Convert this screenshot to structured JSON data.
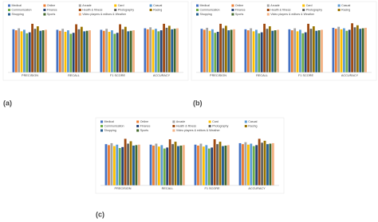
{
  "chart_data": [
    {
      "type": "bar",
      "label": "(a)",
      "categories": [
        "PRECISION",
        "RECALL",
        "F1 SCORE",
        "ACCURACY"
      ],
      "series": [
        {
          "name": "Medical",
          "color": "#4472c4",
          "values": [
            0.86,
            0.85,
            0.85,
            0.88
          ]
        },
        {
          "name": "Online",
          "color": "#ed7d31",
          "values": [
            0.84,
            0.83,
            0.83,
            0.86
          ]
        },
        {
          "name": "Arcade",
          "color": "#a5a5a5",
          "values": [
            0.88,
            0.87,
            0.87,
            0.9
          ]
        },
        {
          "name": "Card",
          "color": "#ffc000",
          "values": [
            0.82,
            0.81,
            0.81,
            0.85
          ]
        },
        {
          "name": "Casual",
          "color": "#5b9bd5",
          "values": [
            0.85,
            0.84,
            0.84,
            0.87
          ]
        },
        {
          "name": "Communication",
          "color": "#70ad47",
          "values": [
            0.78,
            0.77,
            0.77,
            0.82
          ]
        },
        {
          "name": "Finance",
          "color": "#264478",
          "values": [
            0.8,
            0.79,
            0.79,
            0.84
          ]
        },
        {
          "name": "Health & fitness",
          "color": "#9e480e",
          "values": [
            0.97,
            0.96,
            0.96,
            0.97
          ]
        },
        {
          "name": "Photography",
          "color": "#636363",
          "values": [
            0.87,
            0.86,
            0.86,
            0.89
          ]
        },
        {
          "name": "Racing",
          "color": "#997300",
          "values": [
            0.92,
            0.91,
            0.91,
            0.93
          ]
        },
        {
          "name": "Shopping",
          "color": "#255e91",
          "values": [
            0.83,
            0.82,
            0.82,
            0.86
          ]
        },
        {
          "name": "Sports",
          "color": "#43682b",
          "values": [
            0.84,
            0.83,
            0.83,
            0.87
          ]
        },
        {
          "name": "Video players & editors & Weather",
          "color": "#f4b183",
          "values": [
            0.85,
            0.84,
            0.84,
            0.88
          ]
        }
      ]
    },
    {
      "type": "bar",
      "label": "(b)",
      "categories": [
        "PRECISION",
        "RECALL",
        "F1 SCORE",
        "ACCURACY"
      ],
      "series": [
        {
          "name": "Medical",
          "color": "#4472c4",
          "values": [
            0.87,
            0.86,
            0.86,
            0.89
          ]
        },
        {
          "name": "Online",
          "color": "#ed7d31",
          "values": [
            0.85,
            0.84,
            0.84,
            0.87
          ]
        },
        {
          "name": "Arcade",
          "color": "#a5a5a5",
          "values": [
            0.89,
            0.88,
            0.88,
            0.91
          ]
        },
        {
          "name": "Card",
          "color": "#ffc000",
          "values": [
            0.83,
            0.82,
            0.82,
            0.86
          ]
        },
        {
          "name": "Casual",
          "color": "#5b9bd5",
          "values": [
            0.86,
            0.85,
            0.85,
            0.88
          ]
        },
        {
          "name": "Communication",
          "color": "#70ad47",
          "values": [
            0.79,
            0.78,
            0.78,
            0.83
          ]
        },
        {
          "name": "Finance",
          "color": "#264478",
          "values": [
            0.81,
            0.8,
            0.8,
            0.85
          ]
        },
        {
          "name": "Health & fitness",
          "color": "#9e480e",
          "values": [
            0.97,
            0.97,
            0.97,
            0.98
          ]
        },
        {
          "name": "Photography",
          "color": "#636363",
          "values": [
            0.88,
            0.87,
            0.87,
            0.9
          ]
        },
        {
          "name": "Racing",
          "color": "#997300",
          "values": [
            0.93,
            0.92,
            0.92,
            0.94
          ]
        },
        {
          "name": "Shopping",
          "color": "#255e91",
          "values": [
            0.84,
            0.83,
            0.83,
            0.87
          ]
        },
        {
          "name": "Sports",
          "color": "#43682b",
          "values": [
            0.85,
            0.84,
            0.84,
            0.88
          ]
        },
        {
          "name": "Video players & editors & Weather",
          "color": "#f4b183",
          "values": [
            0.86,
            0.85,
            0.85,
            0.89
          ]
        }
      ]
    },
    {
      "type": "bar",
      "label": "(c)",
      "categories": [
        "PRECISION",
        "RECALL",
        "F1 SCORE",
        "ACCURACY"
      ],
      "series": [
        {
          "name": "Medical",
          "color": "#4472c4",
          "values": [
            0.85,
            0.84,
            0.84,
            0.87
          ]
        },
        {
          "name": "Online",
          "color": "#ed7d31",
          "values": [
            0.83,
            0.82,
            0.82,
            0.85
          ]
        },
        {
          "name": "Arcade",
          "color": "#a5a5a5",
          "values": [
            0.87,
            0.86,
            0.86,
            0.89
          ]
        },
        {
          "name": "Card",
          "color": "#ffc000",
          "values": [
            0.81,
            0.8,
            0.8,
            0.84
          ]
        },
        {
          "name": "Casual",
          "color": "#5b9bd5",
          "values": [
            0.84,
            0.83,
            0.83,
            0.86
          ]
        },
        {
          "name": "Communication",
          "color": "#70ad47",
          "values": [
            0.77,
            0.76,
            0.76,
            0.81
          ]
        },
        {
          "name": "Finance",
          "color": "#264478",
          "values": [
            0.79,
            0.78,
            0.78,
            0.83
          ]
        },
        {
          "name": "Health & fitness",
          "color": "#9e480e",
          "values": [
            0.96,
            0.95,
            0.95,
            0.96
          ]
        },
        {
          "name": "Photography",
          "color": "#636363",
          "values": [
            0.86,
            0.85,
            0.85,
            0.88
          ]
        },
        {
          "name": "Racing",
          "color": "#997300",
          "values": [
            0.91,
            0.9,
            0.9,
            0.92
          ]
        },
        {
          "name": "Shopping",
          "color": "#255e91",
          "values": [
            0.82,
            0.81,
            0.81,
            0.85
          ]
        },
        {
          "name": "Sports",
          "color": "#43682b",
          "values": [
            0.83,
            0.82,
            0.82,
            0.86
          ]
        },
        {
          "name": "Video players & editors & Weather",
          "color": "#f4b183",
          "values": [
            0.84,
            0.83,
            0.83,
            0.87
          ]
        }
      ]
    }
  ]
}
